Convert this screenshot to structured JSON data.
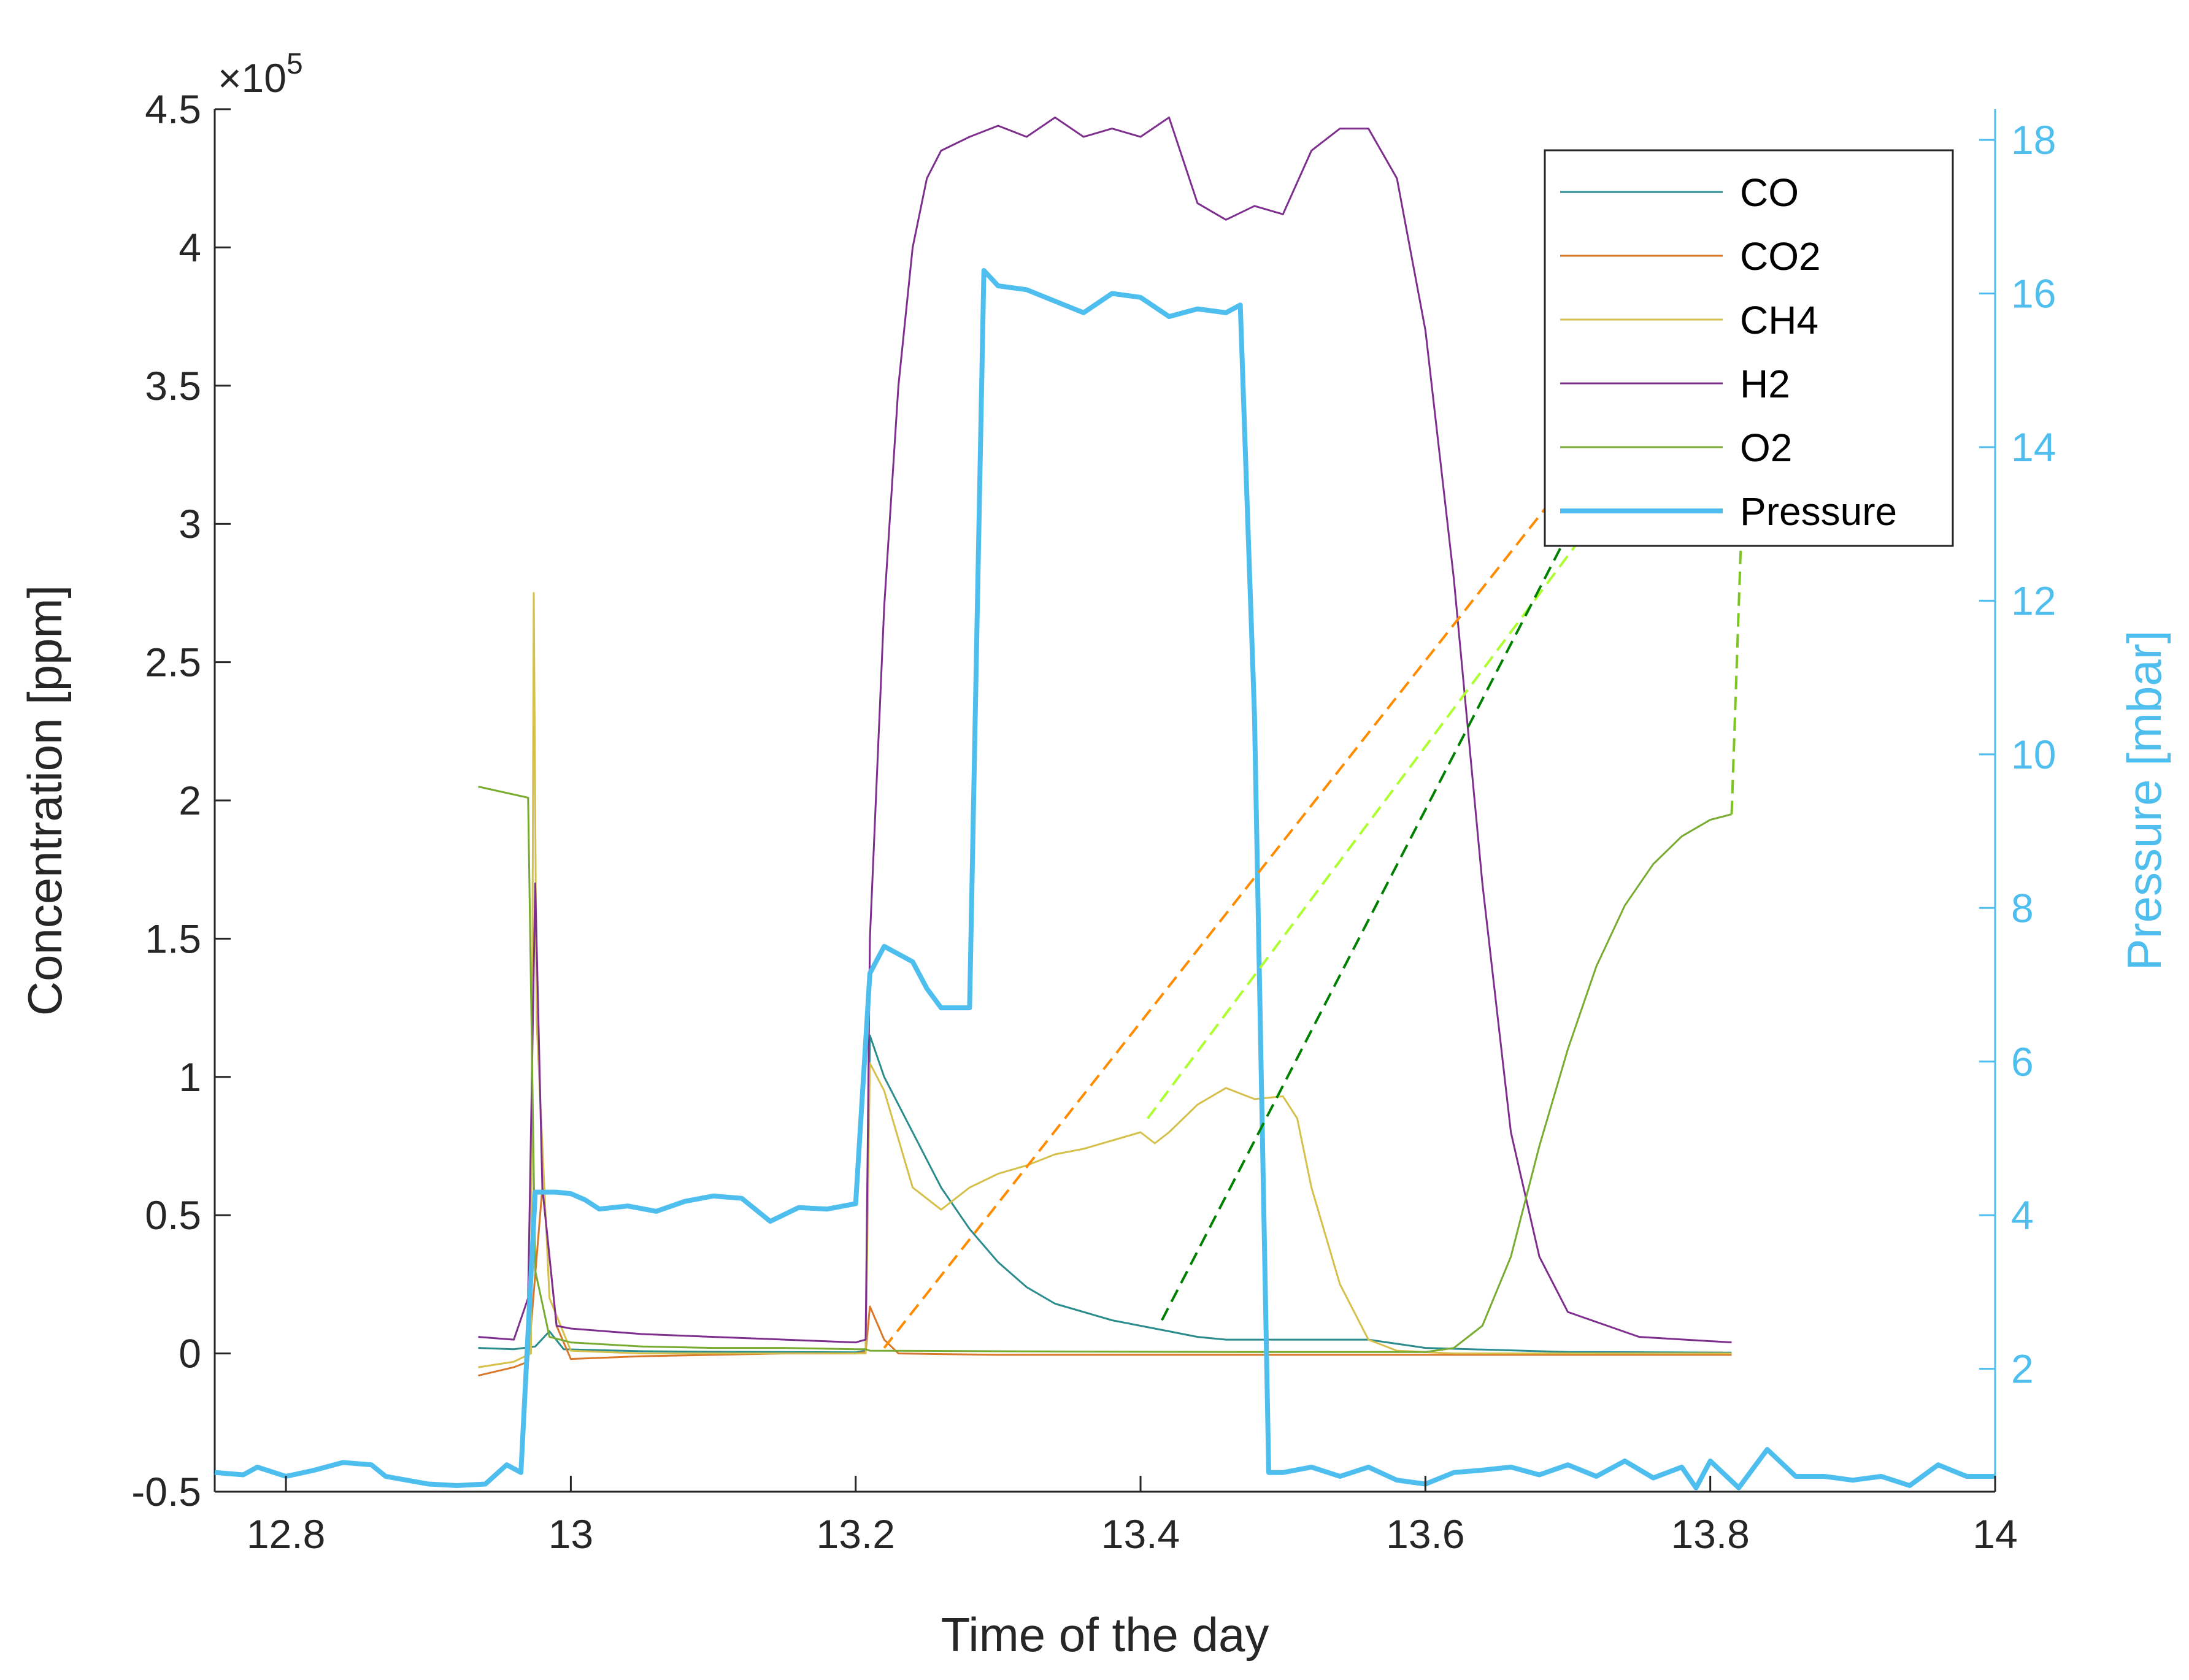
{
  "chart_data": {
    "type": "line",
    "xlabel": "Time of the day",
    "ylabel_left": "Concentration [ppm]",
    "ylabel_right": "Pressure [mbar]",
    "left_exponent_label": "×10",
    "left_exponent_power": "5",
    "xlim": [
      12.75,
      14.0
    ],
    "ylim_left": [
      -50000,
      450000
    ],
    "ylim_right": [
      0.4,
      18.4
    ],
    "x_ticks": [
      {
        "value": 12.8,
        "label": "12.8"
      },
      {
        "value": 13.0,
        "label": "13"
      },
      {
        "value": 13.2,
        "label": "13.2"
      },
      {
        "value": 13.4,
        "label": "13.4"
      },
      {
        "value": 13.6,
        "label": "13.6"
      },
      {
        "value": 13.8,
        "label": "13.8"
      },
      {
        "value": 14.0,
        "label": "14"
      }
    ],
    "y_ticks_left": [
      {
        "value": -50000,
        "label": "-0.5"
      },
      {
        "value": 0,
        "label": "0"
      },
      {
        "value": 50000,
        "label": "0.5"
      },
      {
        "value": 100000,
        "label": "1"
      },
      {
        "value": 150000,
        "label": "1.5"
      },
      {
        "value": 200000,
        "label": "2"
      },
      {
        "value": 250000,
        "label": "2.5"
      },
      {
        "value": 300000,
        "label": "3"
      },
      {
        "value": 350000,
        "label": "3.5"
      },
      {
        "value": 400000,
        "label": "4"
      },
      {
        "value": 450000,
        "label": "4.5"
      }
    ],
    "y_ticks_right": [
      {
        "value": 2,
        "label": "2"
      },
      {
        "value": 4,
        "label": "4"
      },
      {
        "value": 6,
        "label": "6"
      },
      {
        "value": 8,
        "label": "8"
      },
      {
        "value": 10,
        "label": "10"
      },
      {
        "value": 12,
        "label": "12"
      },
      {
        "value": 14,
        "label": "14"
      },
      {
        "value": 16,
        "label": "16"
      },
      {
        "value": 18,
        "label": "18"
      }
    ],
    "legend_position": "top-right",
    "legend": [
      "CO",
      "CO2",
      "CH4",
      "H2",
      "O2",
      "Pressure"
    ],
    "series": [
      {
        "name": "CO",
        "axis": "left",
        "color": "#2a8c8c",
        "width": 3,
        "points": [
          [
            12.935,
            2000
          ],
          [
            12.96,
            1500
          ],
          [
            12.975,
            2500
          ],
          [
            12.985,
            8000
          ],
          [
            12.995,
            1500
          ],
          [
            13.05,
            800
          ],
          [
            13.1,
            600
          ],
          [
            13.15,
            500
          ],
          [
            13.2,
            400
          ],
          [
            13.207,
            1000
          ],
          [
            13.21,
            115000
          ],
          [
            13.22,
            100000
          ],
          [
            13.24,
            80000
          ],
          [
            13.26,
            60000
          ],
          [
            13.28,
            45000
          ],
          [
            13.3,
            33000
          ],
          [
            13.32,
            24000
          ],
          [
            13.34,
            18000
          ],
          [
            13.36,
            15000
          ],
          [
            13.38,
            12000
          ],
          [
            13.4,
            10000
          ],
          [
            13.42,
            8000
          ],
          [
            13.44,
            6000
          ],
          [
            13.46,
            5000
          ],
          [
            13.5,
            5000
          ],
          [
            13.56,
            5000
          ],
          [
            13.6,
            2000
          ],
          [
            13.7,
            500
          ],
          [
            13.815,
            300
          ]
        ]
      },
      {
        "name": "CO2",
        "axis": "left",
        "color": "#d9782a",
        "width": 3,
        "points": [
          [
            12.935,
            -8000
          ],
          [
            12.96,
            -5000
          ],
          [
            12.97,
            -3000
          ],
          [
            12.98,
            60000
          ],
          [
            12.99,
            10000
          ],
          [
            13.0,
            -2000
          ],
          [
            13.05,
            -1000
          ],
          [
            13.1,
            -500
          ],
          [
            13.15,
            0
          ],
          [
            13.2,
            0
          ],
          [
            13.207,
            500
          ],
          [
            13.21,
            17000
          ],
          [
            13.22,
            5000
          ],
          [
            13.23,
            0
          ],
          [
            13.3,
            -500
          ],
          [
            13.5,
            -500
          ],
          [
            13.7,
            -500
          ],
          [
            13.815,
            -500
          ]
        ]
      },
      {
        "name": "CH4",
        "axis": "left",
        "color": "#d4c04a",
        "width": 3,
        "points": [
          [
            12.935,
            -5000
          ],
          [
            12.96,
            -3000
          ],
          [
            12.972,
            0
          ],
          [
            12.974,
            275000
          ],
          [
            12.976,
            120000
          ],
          [
            12.985,
            20000
          ],
          [
            13.0,
            1000
          ],
          [
            13.05,
            0
          ],
          [
            13.1,
            0
          ],
          [
            13.2,
            0
          ],
          [
            13.207,
            0
          ],
          [
            13.21,
            105000
          ],
          [
            13.22,
            95000
          ],
          [
            13.24,
            60000
          ],
          [
            13.26,
            52000
          ],
          [
            13.28,
            60000
          ],
          [
            13.3,
            65000
          ],
          [
            13.32,
            68000
          ],
          [
            13.34,
            72000
          ],
          [
            13.36,
            74000
          ],
          [
            13.38,
            77000
          ],
          [
            13.4,
            80000
          ],
          [
            13.41,
            76000
          ],
          [
            13.42,
            80000
          ],
          [
            13.44,
            90000
          ],
          [
            13.46,
            96000
          ],
          [
            13.48,
            92000
          ],
          [
            13.5,
            93000
          ],
          [
            13.51,
            85000
          ],
          [
            13.52,
            60000
          ],
          [
            13.54,
            25000
          ],
          [
            13.56,
            5000
          ],
          [
            13.58,
            1000
          ],
          [
            13.62,
            0
          ],
          [
            13.815,
            0
          ]
        ]
      },
      {
        "name": "H2",
        "axis": "left",
        "color": "#7e2f8e",
        "width": 3,
        "points": [
          [
            12.935,
            6000
          ],
          [
            12.96,
            5000
          ],
          [
            12.97,
            20000
          ],
          [
            12.975,
            170000
          ],
          [
            12.98,
            60000
          ],
          [
            12.99,
            10000
          ],
          [
            13.0,
            9000
          ],
          [
            13.05,
            7000
          ],
          [
            13.1,
            6000
          ],
          [
            13.15,
            5000
          ],
          [
            13.2,
            4000
          ],
          [
            13.207,
            5000
          ],
          [
            13.21,
            150000
          ],
          [
            13.22,
            270000
          ],
          [
            13.23,
            350000
          ],
          [
            13.24,
            400000
          ],
          [
            13.25,
            425000
          ],
          [
            13.26,
            435000
          ],
          [
            13.28,
            440000
          ],
          [
            13.3,
            444000
          ],
          [
            13.32,
            440000
          ],
          [
            13.34,
            447000
          ],
          [
            13.36,
            440000
          ],
          [
            13.38,
            443000
          ],
          [
            13.4,
            440000
          ],
          [
            13.42,
            447000
          ],
          [
            13.44,
            416000
          ],
          [
            13.46,
            410000
          ],
          [
            13.48,
            415000
          ],
          [
            13.5,
            412000
          ],
          [
            13.52,
            435000
          ],
          [
            13.54,
            443000
          ],
          [
            13.56,
            443000
          ],
          [
            13.58,
            425000
          ],
          [
            13.6,
            370000
          ],
          [
            13.62,
            280000
          ],
          [
            13.64,
            170000
          ],
          [
            13.66,
            80000
          ],
          [
            13.68,
            35000
          ],
          [
            13.7,
            15000
          ],
          [
            13.75,
            6000
          ],
          [
            13.815,
            4000
          ]
        ]
      },
      {
        "name": "O2",
        "axis": "left",
        "color": "#77ac30",
        "width": 3,
        "points": [
          [
            12.935,
            205000
          ],
          [
            12.97,
            201000
          ],
          [
            12.975,
            30000
          ],
          [
            12.985,
            6000
          ],
          [
            13.0,
            4000
          ],
          [
            13.05,
            2500
          ],
          [
            13.1,
            2000
          ],
          [
            13.15,
            2000
          ],
          [
            13.2,
            1500
          ],
          [
            13.207,
            1500
          ],
          [
            13.21,
            1000
          ],
          [
            13.3,
            800
          ],
          [
            13.4,
            600
          ],
          [
            13.5,
            500
          ],
          [
            13.6,
            500
          ],
          [
            13.62,
            2000
          ],
          [
            13.64,
            10000
          ],
          [
            13.66,
            35000
          ],
          [
            13.68,
            75000
          ],
          [
            13.7,
            110000
          ],
          [
            13.72,
            140000
          ],
          [
            13.74,
            162000
          ],
          [
            13.76,
            177000
          ],
          [
            13.78,
            187000
          ],
          [
            13.8,
            193000
          ],
          [
            13.815,
            195000
          ]
        ]
      },
      {
        "name": "Pressure",
        "axis": "right",
        "color": "#4dbeee",
        "width": 8,
        "points": [
          [
            12.75,
            0.65
          ],
          [
            12.77,
            0.62
          ],
          [
            12.78,
            0.72
          ],
          [
            12.8,
            0.6
          ],
          [
            12.82,
            0.68
          ],
          [
            12.84,
            0.78
          ],
          [
            12.86,
            0.75
          ],
          [
            12.87,
            0.6
          ],
          [
            12.9,
            0.5
          ],
          [
            12.92,
            0.48
          ],
          [
            12.94,
            0.5
          ],
          [
            12.955,
            0.75
          ],
          [
            12.965,
            0.65
          ],
          [
            12.975,
            4.3
          ],
          [
            12.99,
            4.3
          ],
          [
            13.0,
            4.28
          ],
          [
            13.01,
            4.2
          ],
          [
            13.02,
            4.08
          ],
          [
            13.04,
            4.12
          ],
          [
            13.06,
            4.05
          ],
          [
            13.08,
            4.18
          ],
          [
            13.1,
            4.25
          ],
          [
            13.12,
            4.22
          ],
          [
            13.14,
            3.92
          ],
          [
            13.16,
            4.1
          ],
          [
            13.18,
            4.08
          ],
          [
            13.2,
            4.15
          ],
          [
            13.21,
            7.15
          ],
          [
            13.22,
            7.5
          ],
          [
            13.24,
            7.3
          ],
          [
            13.25,
            6.95
          ],
          [
            13.26,
            6.7
          ],
          [
            13.27,
            6.7
          ],
          [
            13.28,
            6.7
          ],
          [
            13.29,
            16.3
          ],
          [
            13.3,
            16.1
          ],
          [
            13.32,
            16.05
          ],
          [
            13.34,
            15.9
          ],
          [
            13.36,
            15.75
          ],
          [
            13.38,
            16.0
          ],
          [
            13.4,
            15.95
          ],
          [
            13.42,
            15.7
          ],
          [
            13.44,
            15.8
          ],
          [
            13.46,
            15.75
          ],
          [
            13.47,
            15.85
          ],
          [
            13.48,
            10.5
          ],
          [
            13.49,
            0.65
          ],
          [
            13.5,
            0.65
          ],
          [
            13.52,
            0.72
          ],
          [
            13.54,
            0.6
          ],
          [
            13.56,
            0.72
          ],
          [
            13.58,
            0.55
          ],
          [
            13.6,
            0.5
          ],
          [
            13.62,
            0.65
          ],
          [
            13.64,
            0.68
          ],
          [
            13.66,
            0.72
          ],
          [
            13.68,
            0.62
          ],
          [
            13.7,
            0.75
          ],
          [
            13.72,
            0.6
          ],
          [
            13.74,
            0.8
          ],
          [
            13.76,
            0.58
          ],
          [
            13.78,
            0.72
          ],
          [
            13.79,
            0.45
          ],
          [
            13.8,
            0.8
          ],
          [
            13.82,
            0.45
          ],
          [
            13.84,
            0.95
          ],
          [
            13.86,
            0.6
          ],
          [
            13.88,
            0.6
          ],
          [
            13.9,
            0.55
          ],
          [
            13.92,
            0.6
          ],
          [
            13.94,
            0.48
          ],
          [
            13.96,
            0.75
          ],
          [
            13.98,
            0.6
          ],
          [
            14.0,
            0.6
          ]
        ]
      }
    ],
    "annotations": [
      {
        "name": "annotation-line-co2",
        "color": "#ff8c00",
        "from": {
          "x": 13.22,
          "axis": "left",
          "y": 2000
        },
        "to_legend": "CO2"
      },
      {
        "name": "annotation-line-ch4",
        "color": "#adff2f",
        "from": {
          "x": 13.405,
          "axis": "left",
          "y": 85000
        },
        "to_legend": "CH4"
      },
      {
        "name": "annotation-line-co",
        "color": "#008000",
        "from": {
          "x": 13.415,
          "axis": "left",
          "y": 12000
        },
        "to_legend": "CO"
      },
      {
        "name": "annotation-line-o2",
        "color": "#7cc520",
        "from": {
          "x": 13.815,
          "axis": "left",
          "y": 195000
        },
        "to_legend": "O2"
      }
    ]
  }
}
